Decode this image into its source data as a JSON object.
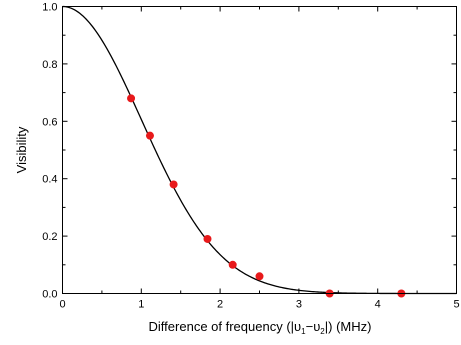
{
  "chart_data": {
    "type": "scatter",
    "xlabel_parts": [
      "Difference of frequency (|",
      "υ",
      "1",
      "−",
      "υ",
      "2",
      "|) (MHz)"
    ],
    "ylabel": "Visibility",
    "xlim": [
      0,
      5
    ],
    "ylim": [
      0,
      1.0
    ],
    "x_ticks": [
      "0",
      "1",
      "2",
      "3",
      "4",
      "5"
    ],
    "y_ticks": [
      "0.0",
      "0.2",
      "0.4",
      "0.6",
      "0.8",
      "1.0"
    ],
    "grid": false,
    "series": [
      {
        "kind": "points",
        "color": "#e8191b",
        "x": [
          0.87,
          1.11,
          1.41,
          1.84,
          2.16,
          2.5,
          3.39,
          4.3
        ],
        "y": [
          0.68,
          0.55,
          0.38,
          0.19,
          0.1,
          0.06,
          0.0,
          0.0
        ]
      },
      {
        "kind": "fit-curve",
        "color": "#000000",
        "function": "gaussian",
        "amplitude": 1.0,
        "center": 0.0,
        "sigma": 1.0
      }
    ]
  }
}
